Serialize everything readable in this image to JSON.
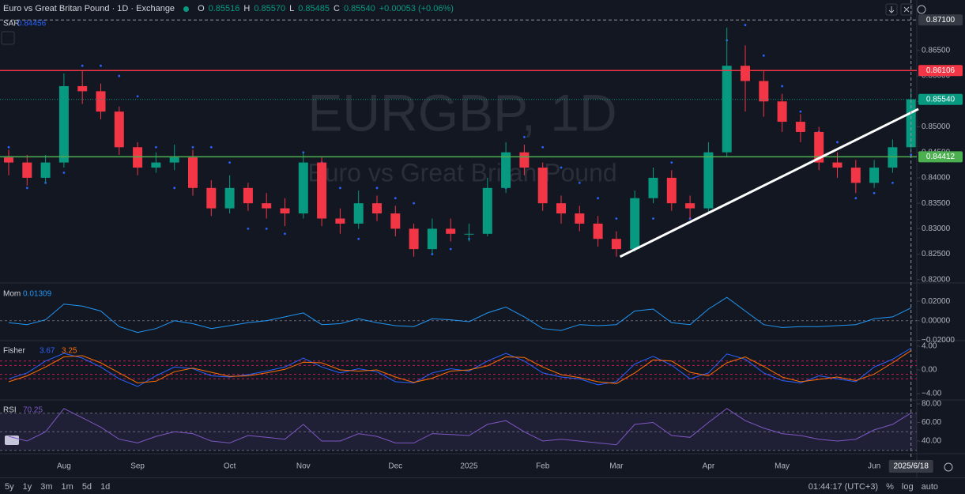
{
  "header": {
    "symbol": "Euro vs Great Britan Pound · 1D · Exchange",
    "ohlc": [
      {
        "label": "O",
        "value": "0.85516"
      },
      {
        "label": "H",
        "value": "0.85570"
      },
      {
        "label": "L",
        "value": "0.85485"
      },
      {
        "label": "C",
        "value": "0.85540"
      }
    ],
    "change": "+0.00053 (+0.06%)"
  },
  "watermark": {
    "ticker": "EURGBP, 1D",
    "name": "Euro vs Great Britan Pound"
  },
  "toolbar": {
    "ranges": [
      "5y",
      "1y",
      "3m",
      "1m",
      "5d",
      "1d"
    ],
    "clock": "01:44:17 (UTC+3)",
    "options": [
      "%",
      "log",
      "auto"
    ]
  },
  "chart_data": [
    {
      "type": "candlestick",
      "categories": [
        null,
        null,
        null,
        "Aug",
        null,
        null,
        null,
        "Sep",
        null,
        null,
        null,
        null,
        "Oct",
        null,
        null,
        null,
        "Nov",
        null,
        null,
        null,
        null,
        "Dec",
        null,
        null,
        null,
        "2025",
        null,
        null,
        null,
        "Feb",
        null,
        null,
        null,
        "Mar",
        null,
        null,
        null,
        null,
        "Apr",
        null,
        null,
        null,
        "May",
        null,
        null,
        null,
        null,
        "Jun",
        null,
        "2025/6/18"
      ],
      "open": [
        0.844,
        0.843,
        0.84,
        0.843,
        0.858,
        0.857,
        0.853,
        0.846,
        0.842,
        0.843,
        0.844,
        0.838,
        0.834,
        0.838,
        0.835,
        0.834,
        0.833,
        0.843,
        0.832,
        0.831,
        0.835,
        0.833,
        0.83,
        0.826,
        0.83,
        0.829,
        0.829,
        0.838,
        0.845,
        0.842,
        0.835,
        0.833,
        0.831,
        0.828,
        0.826,
        0.836,
        0.84,
        0.835,
        0.834,
        0.845,
        0.862,
        0.859,
        0.855,
        0.851,
        0.849,
        0.843,
        0.842,
        0.839,
        0.842,
        0.846
      ],
      "high": [
        0.8455,
        0.8445,
        0.8445,
        0.8605,
        0.861,
        0.8585,
        0.854,
        0.847,
        0.845,
        0.8465,
        0.8455,
        0.8395,
        0.8405,
        0.839,
        0.837,
        0.836,
        0.845,
        0.844,
        0.834,
        0.8375,
        0.8365,
        0.8345,
        0.831,
        0.832,
        0.832,
        0.831,
        0.84,
        0.847,
        0.8465,
        0.843,
        0.8365,
        0.8345,
        0.8325,
        0.8295,
        0.8375,
        0.842,
        0.8415,
        0.8365,
        0.847,
        0.8695,
        0.866,
        0.861,
        0.8565,
        0.8525,
        0.85,
        0.845,
        0.8435,
        0.8435,
        0.8475,
        0.857
      ],
      "low": [
        0.8405,
        0.8385,
        0.839,
        0.842,
        0.8545,
        0.8515,
        0.8445,
        0.8405,
        0.841,
        0.8415,
        0.8365,
        0.8325,
        0.833,
        0.8335,
        0.832,
        0.8305,
        0.832,
        0.8305,
        0.829,
        0.83,
        0.8315,
        0.8285,
        0.8245,
        0.825,
        0.8275,
        0.8275,
        0.8285,
        0.837,
        0.8405,
        0.8335,
        0.831,
        0.8295,
        0.8265,
        0.8245,
        0.8255,
        0.835,
        0.8335,
        0.832,
        0.833,
        0.844,
        0.853,
        0.852,
        0.849,
        0.847,
        0.8415,
        0.84,
        0.837,
        0.838,
        0.841,
        0.8455
      ],
      "close": [
        0.843,
        0.84,
        0.843,
        0.858,
        0.857,
        0.853,
        0.846,
        0.842,
        0.843,
        0.844,
        0.838,
        0.834,
        0.838,
        0.835,
        0.834,
        0.833,
        0.843,
        0.832,
        0.831,
        0.835,
        0.833,
        0.83,
        0.826,
        0.83,
        0.829,
        0.829,
        0.838,
        0.845,
        0.842,
        0.835,
        0.833,
        0.831,
        0.828,
        0.826,
        0.836,
        0.84,
        0.835,
        0.834,
        0.845,
        0.862,
        0.859,
        0.855,
        0.851,
        0.849,
        0.843,
        0.842,
        0.839,
        0.842,
        0.846,
        0.8554
      ],
      "up_color": "#089981",
      "down_color": "#f23645",
      "ylim": [
        0.8195,
        0.8715
      ],
      "yticks": [
        {
          "value": 0.82,
          "label": "0.82000"
        },
        {
          "value": 0.825,
          "label": "0.82500"
        },
        {
          "value": 0.83,
          "label": "0.83000"
        },
        {
          "value": 0.835,
          "label": "0.83500"
        },
        {
          "value": 0.84,
          "label": "0.84000"
        },
        {
          "value": 0.845,
          "label": "0.84500"
        },
        {
          "value": 0.85,
          "label": "0.85000"
        },
        {
          "value": 0.855,
          "label": "0.85500"
        },
        {
          "value": 0.86,
          "label": "0.86000"
        },
        {
          "value": 0.865,
          "label": "0.86500"
        }
      ],
      "indicator": {
        "name": "SAR",
        "color": "#2962ff",
        "values": [
          0.846,
          0.838,
          0.839,
          0.841,
          0.862,
          0.862,
          0.86,
          0.856,
          0.846,
          0.838,
          0.846,
          0.846,
          0.843,
          0.83,
          0.83,
          0.829,
          0.845,
          0.843,
          0.838,
          0.828,
          0.838,
          0.836,
          0.835,
          0.825,
          0.826,
          0.828,
          0.831,
          0.838,
          0.848,
          0.846,
          0.842,
          0.839,
          0.836,
          0.832,
          0.826,
          0.832,
          0.843,
          0.832,
          0.836,
          0.867,
          0.87,
          0.864,
          0.858,
          0.853,
          0.849,
          0.847,
          0.836,
          0.837,
          0.839,
          0.84456
        ]
      },
      "hlines": [
        {
          "value": 0.86106,
          "label": "0.86106",
          "color": "#f23645"
        },
        {
          "value": 0.8554,
          "label": "0.85540",
          "color": "#089981"
        },
        {
          "value": 0.84412,
          "label": "0.84412",
          "color": "#4caf50"
        }
      ],
      "trendline": {
        "x": [
          33.2,
          49.4
        ],
        "y": [
          0.8245,
          0.8535
        ],
        "color": "#ffffff"
      },
      "crosshair": {
        "value": 0.871,
        "label": "0.87100"
      }
    },
    {
      "type": "line",
      "title": "Mom",
      "ylim": [
        -0.0196,
        0.0371
      ],
      "yticks": [
        {
          "value": 0.02,
          "label": "0.02000"
        },
        {
          "value": 0,
          "label": "0.00000"
        },
        {
          "value": -0.02,
          "label": "−0.02000"
        }
      ],
      "levels": [
        0
      ],
      "level_color": "#787b86",
      "series": [
        {
          "color": "#2196f3",
          "values": [
            -0.002,
            -0.004,
            0.001,
            0.017,
            0.015,
            0.01,
            -0.006,
            -0.012,
            -0.008,
            0.0,
            -0.003,
            -0.008,
            -0.005,
            -0.002,
            0.0,
            0.004,
            0.008,
            -0.004,
            -0.003,
            0.002,
            -0.002,
            -0.005,
            -0.006,
            0.002,
            0.001,
            -0.001,
            0.008,
            0.014,
            0.004,
            -0.008,
            -0.01,
            -0.004,
            -0.005,
            -0.004,
            0.01,
            0.012,
            -0.002,
            -0.004,
            0.012,
            0.024,
            0.01,
            -0.004,
            -0.007,
            -0.006,
            -0.006,
            -0.005,
            -0.004,
            0.002,
            0.004,
            0.01309
          ]
        }
      ]
    },
    {
      "type": "line",
      "title": "Fisher",
      "ylim": [
        -4.93,
        4.8
      ],
      "yticks": [
        {
          "value": 4,
          "label": "4.00"
        },
        {
          "value": 0,
          "label": "0.00"
        },
        {
          "value": -4,
          "label": "−4.00"
        }
      ],
      "levels": [
        1.5,
        0.75,
        -0.75,
        -1.5
      ],
      "level_color": "#e91e63",
      "series": [
        {
          "color": "#2962ff",
          "values": [
            -1.5,
            -0.5,
            1.5,
            2.8,
            2.0,
            0.5,
            -1.5,
            -2.8,
            -1.0,
            0.5,
            0.2,
            -1.0,
            -1.2,
            -0.8,
            -0.2,
            0.5,
            2.0,
            0.5,
            -0.5,
            0.2,
            -0.3,
            -2.0,
            -2.2,
            -0.5,
            0.2,
            -0.2,
            1.5,
            2.8,
            1.5,
            -0.5,
            -1.2,
            -1.5,
            -2.5,
            -2.0,
            1.0,
            2.3,
            0.8,
            -1.5,
            -0.5,
            2.7,
            1.8,
            -0.5,
            -1.8,
            -2.2,
            -1.0,
            -1.5,
            -2.0,
            0.5,
            1.8,
            3.67
          ]
        },
        {
          "color": "#ff6d00",
          "values": [
            -2.0,
            -1.0,
            0.5,
            2.2,
            2.4,
            1.2,
            -0.5,
            -2.2,
            -1.9,
            -0.3,
            0.3,
            -0.4,
            -1.1,
            -1.0,
            -0.5,
            0.1,
            1.3,
            1.2,
            0.0,
            -0.2,
            0.0,
            -1.2,
            -2.1,
            -1.4,
            -0.2,
            0.0,
            0.7,
            2.2,
            2.1,
            0.5,
            -0.8,
            -1.3,
            -2.0,
            -2.3,
            -0.5,
            1.7,
            1.5,
            -0.4,
            -1.0,
            1.2,
            2.2,
            0.6,
            -1.2,
            -2.0,
            -1.6,
            -1.2,
            -1.8,
            -0.7,
            1.2,
            3.25
          ]
        }
      ]
    },
    {
      "type": "line",
      "title": "RSI",
      "ylim": [
        28.1,
        83.4
      ],
      "yticks": [
        {
          "value": 80,
          "label": "80.00"
        },
        {
          "value": 60,
          "label": "60.00"
        },
        {
          "value": 40,
          "label": "40.00"
        }
      ],
      "band": [
        30,
        70
      ],
      "levels": [
        70,
        50,
        30
      ],
      "level_color": "#787b86",
      "series": [
        {
          "color": "#7e57c2",
          "values": [
            45,
            40,
            50,
            75,
            65,
            55,
            42,
            38,
            45,
            50,
            48,
            40,
            38,
            46,
            44,
            42,
            58,
            40,
            40,
            48,
            45,
            38,
            38,
            48,
            47,
            46,
            58,
            62,
            50,
            40,
            42,
            40,
            38,
            36,
            58,
            60,
            46,
            44,
            60,
            75,
            62,
            54,
            48,
            46,
            42,
            40,
            42,
            52,
            58,
            70.25
          ]
        }
      ]
    }
  ]
}
